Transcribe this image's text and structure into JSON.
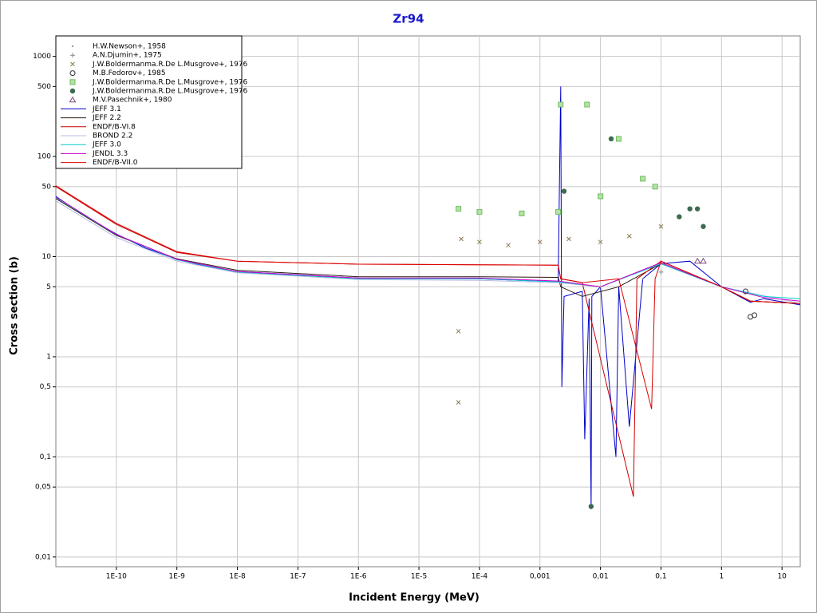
{
  "chart_data": {
    "type": "scatter",
    "title": "Zr94",
    "x_label": "Incident Energy (MeV)",
    "y_label": "Cross section (b)",
    "xscale": "log",
    "yscale": "log",
    "grid": true,
    "legend": "upper left",
    "xlim": [
      1e-11,
      20
    ],
    "ylim": [
      0.008,
      1600
    ],
    "xticks": [
      {
        "value": 1e-10,
        "label": "1E-10"
      },
      {
        "value": 1e-09,
        "label": "1E-9"
      },
      {
        "value": 1e-08,
        "label": "1E-8"
      },
      {
        "value": 1e-07,
        "label": "1E-7"
      },
      {
        "value": 1e-06,
        "label": "1E-6"
      },
      {
        "value": 1e-05,
        "label": "1E-5"
      },
      {
        "value": 0.0001,
        "label": "1E-4"
      },
      {
        "value": 0.001,
        "label": "0,001"
      },
      {
        "value": 0.01,
        "label": "0,01"
      },
      {
        "value": 0.1,
        "label": "0,1"
      },
      1,
      10
    ],
    "yticks": [
      {
        "value": 0.01,
        "label": "0,01"
      },
      {
        "value": 0.05,
        "label": "0,05"
      },
      {
        "value": 0.1,
        "label": "0,1"
      },
      {
        "value": 0.5,
        "label": "0,5"
      },
      1,
      5,
      10,
      50,
      100,
      500,
      1000
    ],
    "series": [
      {
        "name": "H.W.Newson+, 1958",
        "marker": "dot",
        "color": "#999999",
        "x": [
          0.01,
          0.05
        ],
        "values": [
          5,
          6
        ]
      },
      {
        "name": "A.N.Djumin+, 1975",
        "marker": "plus",
        "color": "#888888",
        "x": [
          0.1
        ],
        "values": [
          7
        ]
      },
      {
        "name": "J.W.Boldermanma.R.De L.Musgrove+, 1976",
        "marker": "x",
        "color": "#8a7a50",
        "x": [
          4.5e-05,
          4.5e-05,
          5e-05,
          0.0001,
          0.0003,
          0.001,
          0.003,
          0.01,
          0.03,
          0.1
        ],
        "values": [
          0.35,
          1.8,
          15,
          14,
          13,
          14,
          15,
          14,
          16,
          20
        ]
      },
      {
        "name": "M.B.Fedorov+, 1985",
        "marker": "circle",
        "color": "#333333",
        "x": [
          2.5,
          3,
          3.5
        ],
        "values": [
          4.5,
          2.5,
          2.6
        ]
      },
      {
        "name": "J.W.Boldermanma.R.De L.Musgrove+, 1976",
        "marker": "square",
        "color": "#6cbf5c",
        "x": [
          4.5e-05,
          0.0001,
          0.0005,
          0.002,
          0.0022,
          0.006,
          0.01,
          0.02,
          0.05,
          0.08
        ],
        "values": [
          30,
          28,
          27,
          28,
          330,
          330,
          40,
          150,
          60,
          50
        ]
      },
      {
        "name": "J.W.Boldermanma.R.De L.Musgrove+, 1976",
        "marker": "filled-circle",
        "color": "#3d6b4f",
        "x": [
          0.0025,
          0.007,
          0.015,
          0.2,
          0.3,
          0.4,
          0.5
        ],
        "values": [
          45,
          0.032,
          150,
          25,
          30,
          30,
          20
        ]
      },
      {
        "name": "M.V.Pasechnik+, 1980",
        "marker": "triangle",
        "color": "#7a4a7a",
        "x": [
          0.4,
          0.5
        ],
        "values": [
          9,
          9
        ]
      },
      {
        "name": "JEFF 3.1",
        "marker": "line",
        "color": "#0000cc",
        "x": [
          1e-11,
          3e-11,
          1e-10,
          3e-10,
          1e-09,
          3e-09,
          1e-08,
          1e-06,
          0.0001,
          0.002,
          0.0022,
          0.0023,
          0.0025,
          0.005,
          0.0055,
          0.0065,
          0.007,
          0.0072,
          0.01,
          0.018,
          0.02,
          0.03,
          0.05,
          0.1,
          0.3,
          1,
          3,
          5,
          20
        ],
        "values": [
          40,
          25.5,
          16.8,
          12.2,
          9.4,
          8,
          7.1,
          6.1,
          6,
          5.6,
          500,
          0.5,
          4,
          4.5,
          0.15,
          3.8,
          0.03,
          4,
          5,
          0.1,
          5,
          0.2,
          6,
          8.5,
          9,
          5,
          3.5,
          3.8,
          3.3
        ]
      },
      {
        "name": "JEFF 2.2",
        "marker": "line",
        "color": "#2b1a10",
        "x": [
          1e-11,
          1e-10,
          1e-09,
          1e-08,
          1e-06,
          0.0001,
          0.002,
          0.0022,
          0.005,
          0.02,
          0.1,
          1,
          3,
          20
        ],
        "values": [
          38,
          16.3,
          9.5,
          7.3,
          6.3,
          6.3,
          6.2,
          5,
          4,
          5,
          8.5,
          5,
          3.6,
          3.4
        ]
      },
      {
        "name": "ENDF/B-VI.8",
        "marker": "line",
        "color": "#cc0000",
        "x": [
          1e-11,
          1e-10,
          1e-09,
          1e-08,
          1e-06,
          0.0001,
          0.002,
          0.0022,
          0.005,
          0.035,
          0.04,
          0.1,
          1,
          3,
          20
        ],
        "values": [
          50,
          21,
          11,
          9,
          8.4,
          8.3,
          8.2,
          6,
          5.5,
          0.04,
          6,
          9,
          5,
          3.6,
          3.4
        ]
      },
      {
        "name": "BROND 2.2",
        "marker": "line",
        "color": "#b8b8e0",
        "x": [
          1e-11,
          1e-10,
          1e-09,
          1e-08,
          1e-06,
          0.0001,
          0.002,
          0.01,
          0.1,
          1,
          20
        ],
        "values": [
          36,
          15.5,
          9,
          6.9,
          5.9,
          5.8,
          5.5,
          5,
          8.5,
          5,
          3.4
        ]
      },
      {
        "name": "JEFF 3.0",
        "marker": "line",
        "color": "#00cccc",
        "x": [
          1e-11,
          1e-10,
          1e-09,
          1e-08,
          1e-06,
          0.0001,
          0.002,
          0.01,
          0.1,
          1,
          5,
          20
        ],
        "values": [
          39,
          16.5,
          9.3,
          7,
          6,
          6,
          5.6,
          5,
          8.5,
          5,
          4,
          3.8
        ]
      },
      {
        "name": "JENDL 3.3",
        "marker": "line",
        "color": "#cc00cc",
        "x": [
          1e-11,
          1e-10,
          1e-09,
          1e-08,
          1e-06,
          0.0001,
          0.002,
          0.01,
          0.1,
          1,
          5,
          20
        ],
        "values": [
          39.5,
          16.6,
          9.4,
          7.1,
          6.1,
          6.1,
          5.7,
          5,
          8.7,
          5,
          3.9,
          3.6
        ]
      },
      {
        "name": "ENDF/B-VII.0",
        "marker": "line",
        "color": "#dd0000",
        "x": [
          1e-11,
          1e-10,
          1e-09,
          1e-08,
          1e-06,
          0.0001,
          0.002,
          0.0022,
          0.005,
          0.02,
          0.07,
          0.08,
          0.1,
          1,
          3,
          20
        ],
        "values": [
          51,
          21.5,
          11.2,
          9,
          8.4,
          8.3,
          8.2,
          6,
          5.5,
          6,
          0.3,
          6,
          9,
          5,
          3.6,
          3.4
        ]
      }
    ]
  }
}
